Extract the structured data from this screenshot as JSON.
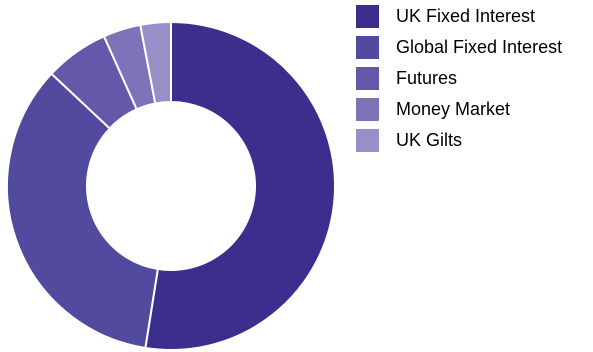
{
  "chart_data": {
    "type": "pie",
    "title": "",
    "donut": true,
    "categories": [
      "UK Fixed Interest",
      "Global Fixed Interest",
      "Futures",
      "Money Market",
      "UK Gilts"
    ],
    "values": [
      52.5,
      34.5,
      6.3,
      3.7,
      3.0
    ],
    "colors": [
      "#3b2e8c",
      "#524a9f",
      "#6657aa",
      "#7f72b9",
      "#9a8ec9"
    ],
    "legend_position": "right"
  }
}
